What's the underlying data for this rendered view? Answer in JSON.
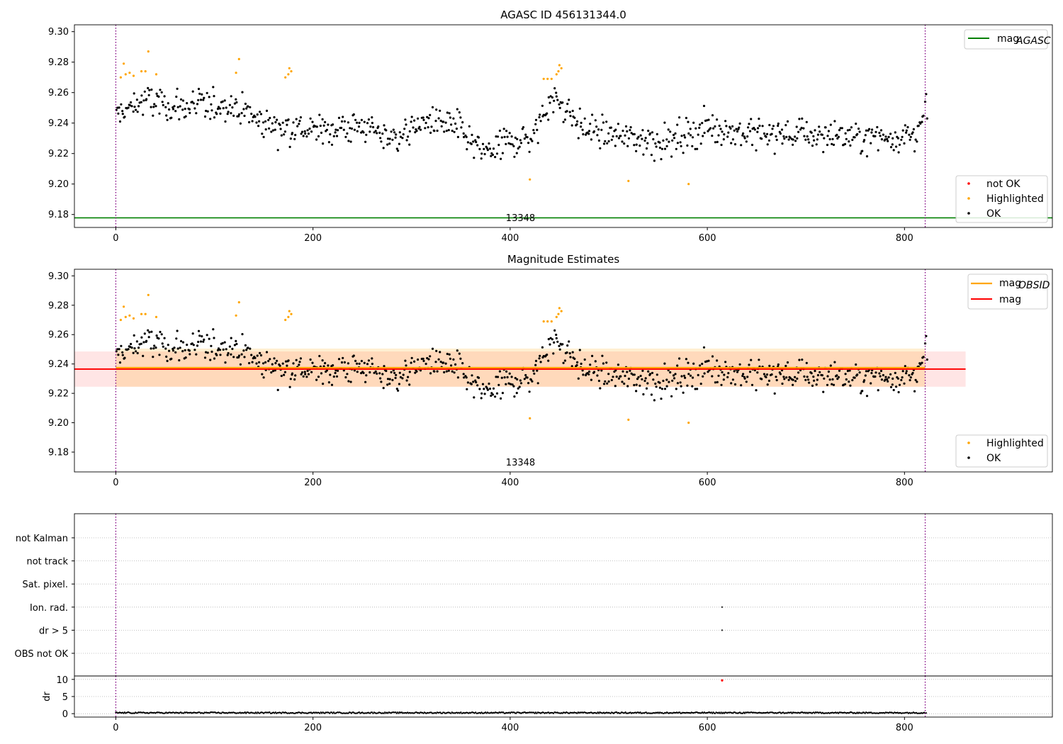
{
  "colors": {
    "ok": "#000000",
    "highlighted": "#ffa500",
    "not_ok": "#ff0000",
    "agasc": "#008000",
    "mag": "#ff0000",
    "mag_obsid": "#ffa500",
    "mark": "#800080"
  },
  "chart_data": [
    {
      "type": "scatter",
      "title": "AGASC ID 456131344.0",
      "xlim": [
        -42,
        950
      ],
      "ylim": [
        9.1715,
        9.3045
      ],
      "x_ticks": [
        0,
        200,
        400,
        600,
        800
      ],
      "y_ticks": [
        "9.18",
        "9.20",
        "9.22",
        "9.24",
        "9.26",
        "9.28",
        "9.30"
      ],
      "reference_line": {
        "name": "mag_AGASC",
        "y": 9.1778
      },
      "obs_boundaries": [
        0,
        821
      ],
      "obs_label": "13348",
      "legend_top": {
        "mag_main": "mag",
        "mag_sub": "AGASC"
      },
      "legend_bottom": [
        "not OK",
        "Highlighted",
        "OK"
      ],
      "series": [
        {
          "name": "OK",
          "x_range": [
            0,
            825
          ],
          "level": 9.235
        },
        {
          "name": "Highlighted",
          "points": [
            [
              5,
              9.27
            ],
            [
              8,
              9.279
            ],
            [
              10,
              9.272
            ],
            [
              14,
              9.273
            ],
            [
              18,
              9.271
            ],
            [
              26,
              9.274
            ],
            [
              30,
              9.274
            ],
            [
              33,
              9.287
            ],
            [
              41,
              9.272
            ],
            [
              122,
              9.273
            ],
            [
              125,
              9.282
            ],
            [
              172,
              9.27
            ],
            [
              175,
              9.272
            ],
            [
              176,
              9.276
            ],
            [
              178,
              9.274
            ],
            [
              420,
              9.203
            ],
            [
              434,
              9.269
            ],
            [
              438,
              9.269
            ],
            [
              442,
              9.269
            ],
            [
              447,
              9.272
            ],
            [
              449,
              9.274
            ],
            [
              450,
              9.278
            ],
            [
              452,
              9.276
            ],
            [
              520,
              9.202
            ],
            [
              581,
              9.2
            ]
          ]
        }
      ]
    },
    {
      "type": "scatter",
      "title": "Magnitude Estimates",
      "xlim": [
        -42,
        950
      ],
      "ylim": [
        9.1665,
        9.3045
      ],
      "x_ticks": [
        0,
        200,
        400,
        600,
        800
      ],
      "y_ticks": [
        "9.18",
        "9.20",
        "9.22",
        "9.24",
        "9.26",
        "9.28",
        "9.30"
      ],
      "obs_boundaries": [
        0,
        821
      ],
      "obs_label": "13348",
      "mag": {
        "name": "mag",
        "y": 9.2365,
        "band": [
          9.2245,
          9.2485
        ],
        "x_range": [
          -42,
          862
        ]
      },
      "mag_obsid": {
        "name": "mag_OBSID",
        "y": 9.2375,
        "band": [
          9.2245,
          9.2505
        ],
        "x_range": [
          0,
          821
        ]
      },
      "legend_top": {
        "obsid_main": "mag",
        "obsid_sub": "OBSID",
        "mag": "mag"
      },
      "legend_bottom": [
        "Highlighted",
        "OK"
      ]
    },
    {
      "type": "scatter",
      "title": "",
      "xlim": [
        -42,
        950
      ],
      "x_ticks": [
        0,
        200,
        400,
        600,
        800
      ],
      "flags": [
        "not Kalman",
        "not track",
        "Sat. pixel.",
        "Ion. rad.",
        "dr > 5",
        "OBS not OK"
      ],
      "flag_points": [
        {
          "flag": "Ion. rad.",
          "x": 615
        },
        {
          "flag": "dr > 5",
          "x": 615
        }
      ],
      "obs_boundaries": [
        0,
        821
      ],
      "dr": {
        "ylabel": "dr",
        "ylim": [
          -1,
          11
        ],
        "y_ticks": [
          "0",
          "5",
          "10"
        ],
        "typical": 0.25,
        "outlier": {
          "x": 615,
          "y": 9.7
        }
      }
    }
  ]
}
